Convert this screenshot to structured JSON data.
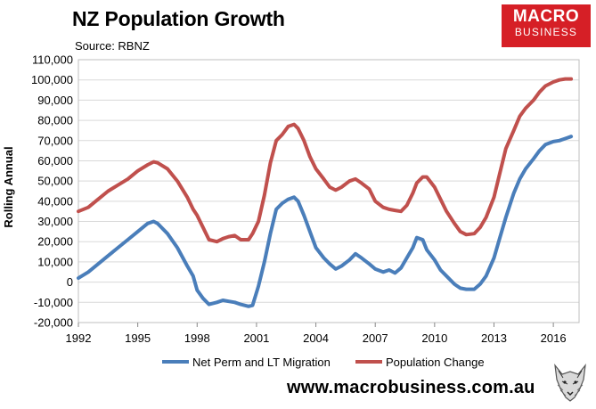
{
  "header": {
    "title": "NZ Population Growth",
    "source": "Source: RBNZ"
  },
  "logo": {
    "line1": "MACRO",
    "line2": "BUSINESS",
    "color": "#d61f26",
    "icon": "wolf-mascot-icon"
  },
  "footer": {
    "url": "www.macrobusiness.com.au"
  },
  "chart_data": {
    "type": "line",
    "title": "NZ Population Growth",
    "ylabel": "Rolling Annual",
    "xlabel": "",
    "xlim": [
      1992,
      2017.3
    ],
    "ylim": [
      -20000,
      110000
    ],
    "grid": "horizontal",
    "legend_position": "bottom",
    "y_ticks": [
      -20000,
      -10000,
      0,
      10000,
      20000,
      30000,
      40000,
      50000,
      60000,
      70000,
      80000,
      90000,
      100000,
      110000
    ],
    "y_tick_labels": [
      "-20,000",
      "-10,000",
      "0",
      "10,000",
      "20,000",
      "30,000",
      "40,000",
      "50,000",
      "60,000",
      "70,000",
      "80,000",
      "90,000",
      "100,000",
      "110,000"
    ],
    "x_ticks": [
      1992,
      1995,
      1998,
      2001,
      2004,
      2007,
      2010,
      2013,
      2016
    ],
    "x_tick_labels": [
      "1992",
      "1995",
      "1998",
      "2001",
      "2004",
      "2007",
      "2010",
      "2013",
      "2016"
    ],
    "series": [
      {
        "name": "Net Perm and LT Migration",
        "color": "#4a7eba",
        "x": [
          1992.0,
          1992.5,
          1993.0,
          1993.5,
          1994.0,
          1994.5,
          1995.0,
          1995.5,
          1995.8,
          1996.0,
          1996.5,
          1997.0,
          1997.5,
          1997.8,
          1998.0,
          1998.3,
          1998.6,
          1999.0,
          1999.3,
          1999.6,
          1999.9,
          2000.2,
          2000.6,
          2000.8,
          2001.1,
          2001.4,
          2001.7,
          2002.0,
          2002.3,
          2002.6,
          2002.9,
          2003.1,
          2003.4,
          2003.7,
          2004.0,
          2004.4,
          2004.7,
          2005.0,
          2005.3,
          2005.7,
          2006.0,
          2006.3,
          2006.7,
          2007.0,
          2007.4,
          2007.7,
          2008.0,
          2008.3,
          2008.6,
          2008.9,
          2009.1,
          2009.4,
          2009.6,
          2010.0,
          2010.3,
          2010.6,
          2011.0,
          2011.3,
          2011.6,
          2012.0,
          2012.3,
          2012.6,
          2013.0,
          2013.3,
          2013.6,
          2014.0,
          2014.3,
          2014.6,
          2015.0,
          2015.3,
          2015.6,
          2016.0,
          2016.3,
          2016.6,
          2016.9
        ],
        "values": [
          2000,
          5000,
          9000,
          13000,
          17000,
          21000,
          25000,
          29000,
          30000,
          29000,
          24000,
          17000,
          8000,
          3000,
          -4000,
          -8000,
          -11000,
          -10000,
          -9000,
          -9500,
          -10000,
          -11000,
          -12000,
          -11500,
          -2000,
          10000,
          24000,
          36000,
          39000,
          41000,
          42000,
          40000,
          33000,
          25000,
          17000,
          12000,
          9000,
          6500,
          8000,
          11000,
          14000,
          12000,
          9000,
          6500,
          5000,
          6000,
          4500,
          7000,
          12000,
          17000,
          22000,
          21000,
          16000,
          11000,
          6000,
          3000,
          -1000,
          -3000,
          -3500,
          -3500,
          -1000,
          3000,
          12000,
          22000,
          32000,
          44000,
          51000,
          56000,
          61000,
          65000,
          68000,
          69500,
          70000,
          71000,
          72000
        ]
      },
      {
        "name": "Population Change",
        "color": "#c0504d",
        "x": [
          1992.0,
          1992.5,
          1993.0,
          1993.5,
          1994.0,
          1994.5,
          1995.0,
          1995.5,
          1995.8,
          1996.0,
          1996.5,
          1997.0,
          1997.5,
          1997.8,
          1998.0,
          1998.3,
          1998.6,
          1999.0,
          1999.3,
          1999.6,
          1999.9,
          2000.2,
          2000.6,
          2000.8,
          2001.1,
          2001.4,
          2001.7,
          2002.0,
          2002.3,
          2002.6,
          2002.9,
          2003.1,
          2003.4,
          2003.7,
          2004.0,
          2004.4,
          2004.7,
          2005.0,
          2005.3,
          2005.7,
          2006.0,
          2006.3,
          2006.7,
          2007.0,
          2007.4,
          2007.7,
          2008.0,
          2008.3,
          2008.6,
          2008.9,
          2009.1,
          2009.4,
          2009.6,
          2010.0,
          2010.3,
          2010.6,
          2011.0,
          2011.3,
          2011.6,
          2012.0,
          2012.3,
          2012.6,
          2013.0,
          2013.3,
          2013.6,
          2014.0,
          2014.3,
          2014.6,
          2015.0,
          2015.3,
          2015.6,
          2016.0,
          2016.3,
          2016.6,
          2016.9
        ],
        "values": [
          35000,
          37000,
          41000,
          45000,
          48000,
          51000,
          55000,
          58000,
          59500,
          59000,
          56000,
          50000,
          42000,
          36000,
          33000,
          27000,
          21000,
          20000,
          21500,
          22500,
          23000,
          21000,
          21000,
          24000,
          30000,
          43000,
          59000,
          70000,
          73000,
          77000,
          78000,
          76000,
          70000,
          62000,
          56000,
          51000,
          47000,
          45500,
          47000,
          50000,
          51000,
          49000,
          46000,
          40000,
          37000,
          36000,
          35500,
          35000,
          38000,
          44000,
          49000,
          52000,
          52000,
          47000,
          41000,
          35000,
          29000,
          25000,
          23500,
          24000,
          27000,
          32000,
          42000,
          54000,
          66000,
          75000,
          82000,
          86000,
          90000,
          94000,
          97000,
          99000,
          100000,
          100500,
          100500
        ]
      }
    ]
  }
}
